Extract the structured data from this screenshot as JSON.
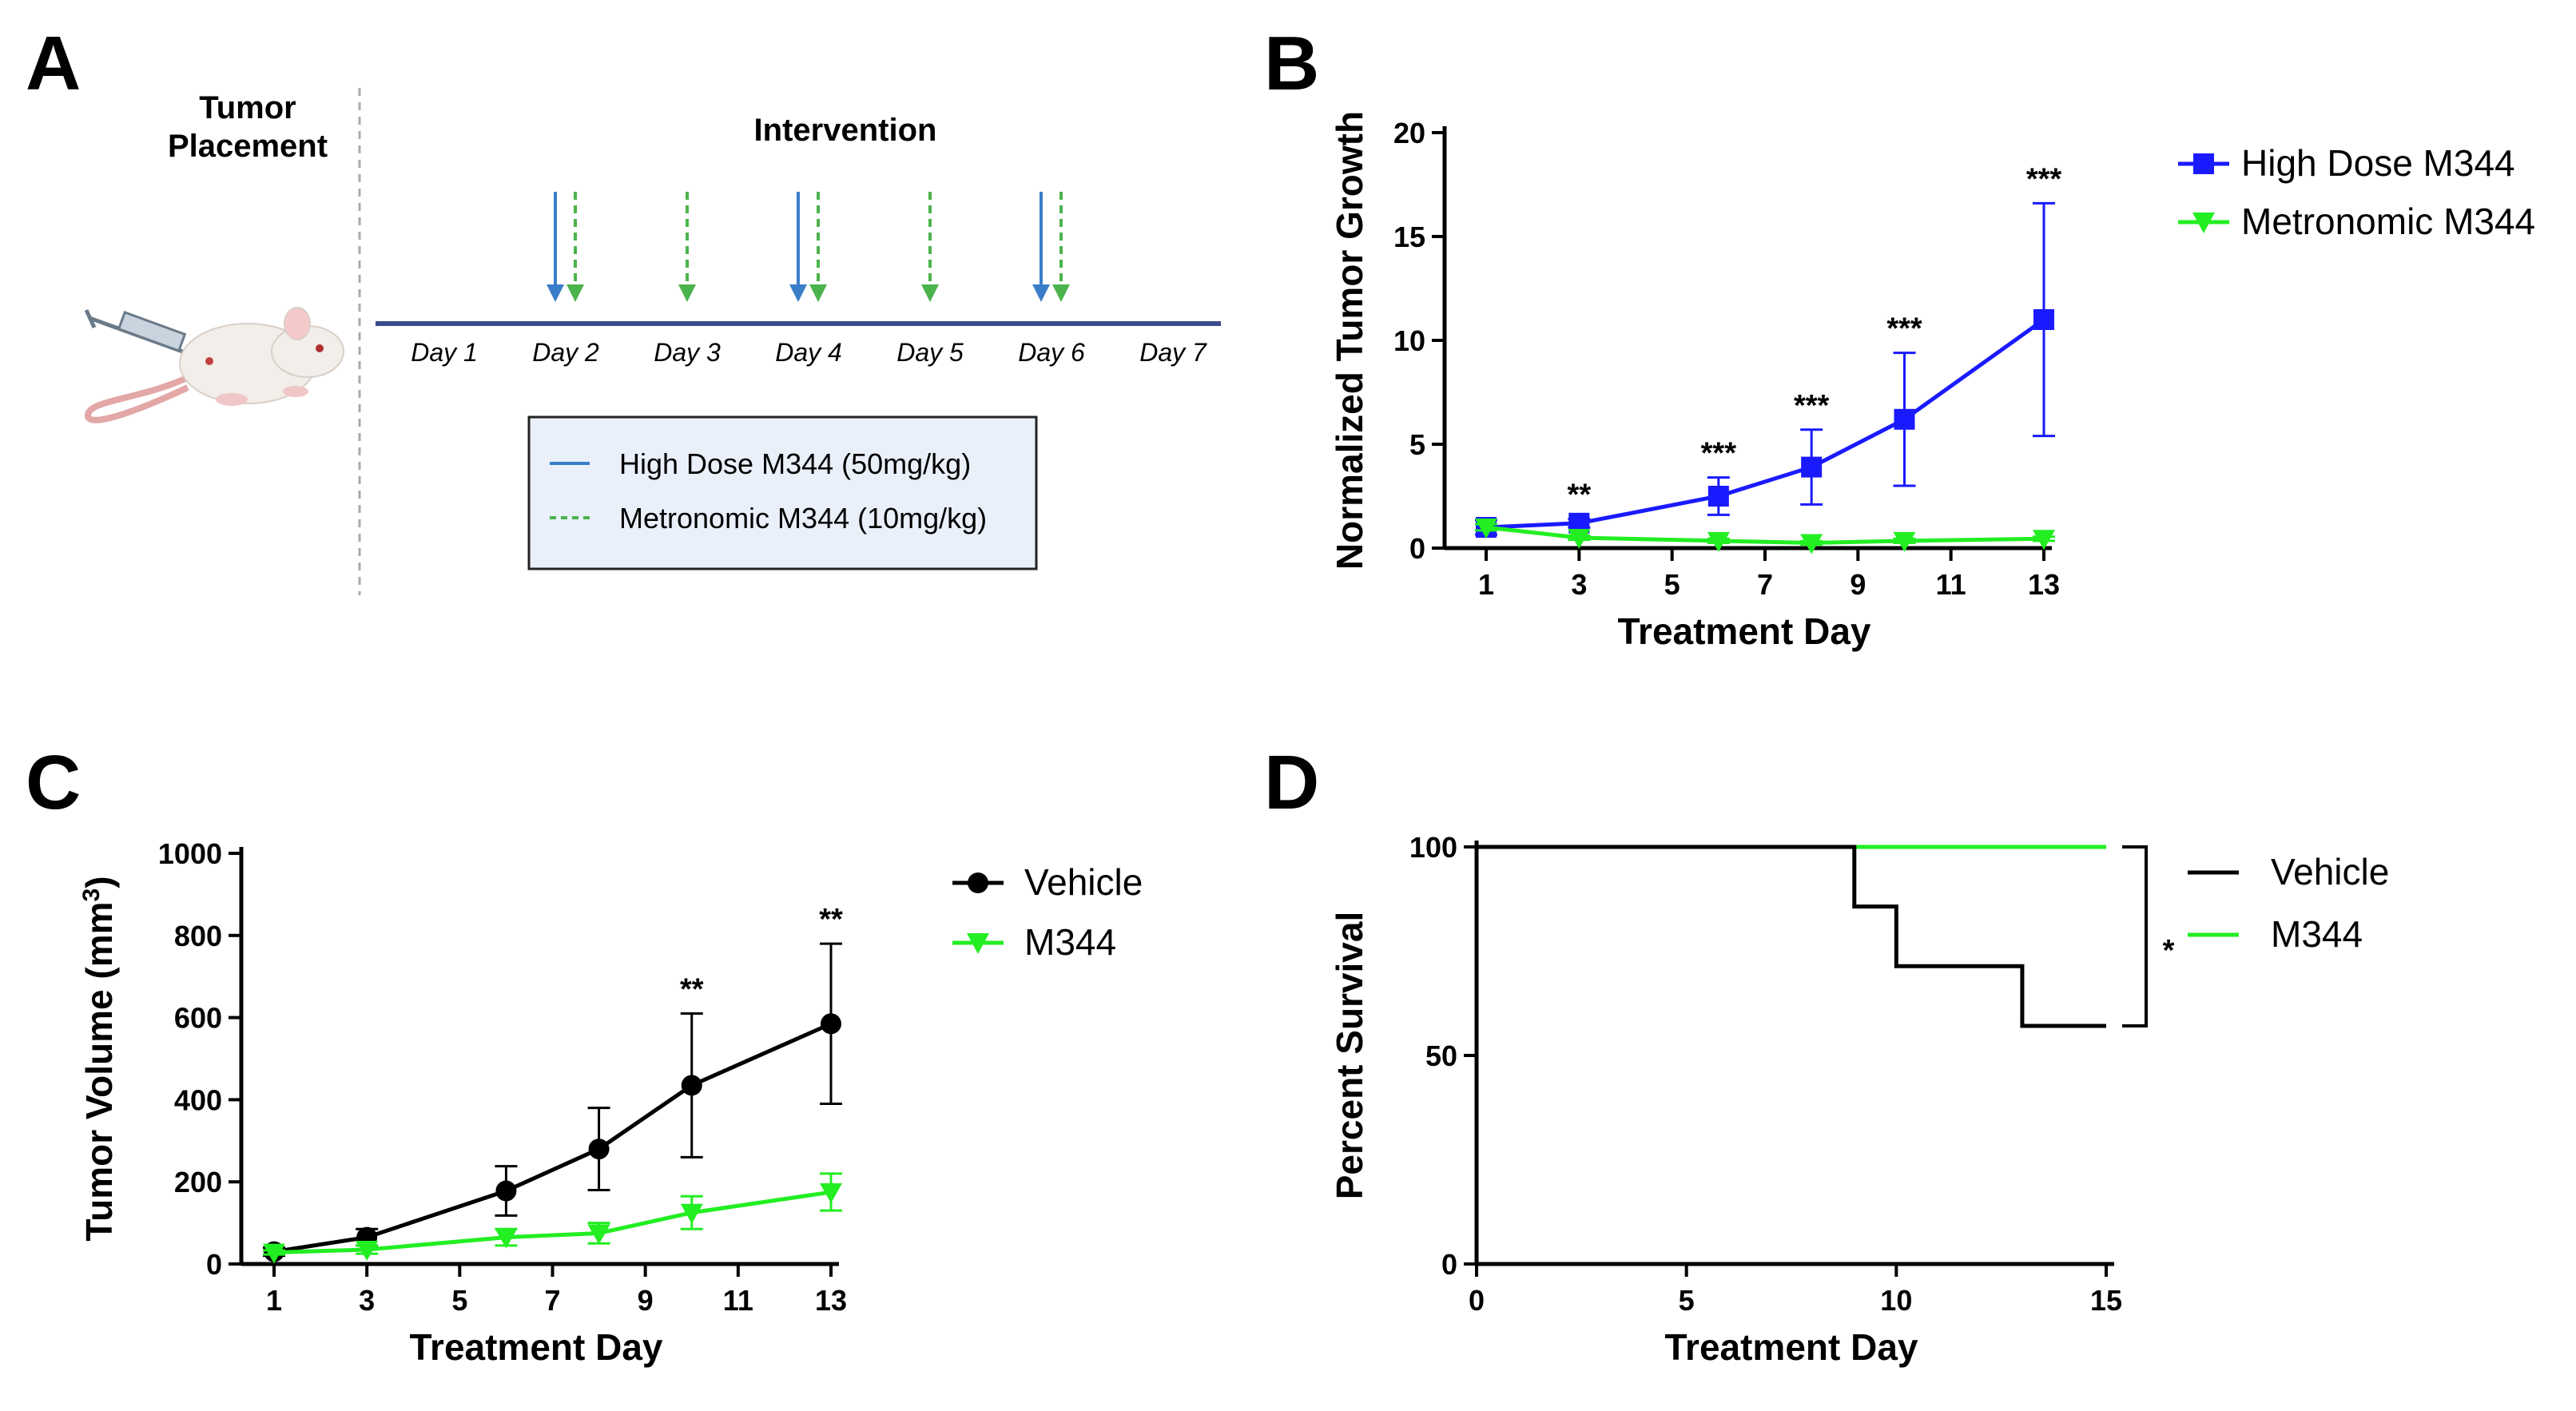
{
  "colors": {
    "high_dose": "#1a1aff",
    "metronomic": "#22ee22",
    "vehicle": "#000000",
    "m344": "#22ee22",
    "arrow_blue": "#3a7dc9",
    "arrow_green": "#4cb34c",
    "timeline": "#3b4a8c",
    "legend_bg": "#e9f0fa"
  },
  "panel_a": {
    "letter": "A",
    "placement_line1": "Tumor",
    "placement_line2": "Placement",
    "intervention": "Intervention",
    "days": [
      "Day 1",
      "Day 2",
      "Day 3",
      "Day 4",
      "Day 5",
      "Day 6",
      "Day 7"
    ],
    "high_dose_days": [
      2,
      4,
      6
    ],
    "metronomic_days": [
      2,
      3,
      4,
      5,
      6
    ],
    "legend": {
      "high": "High Dose M344 (50mg/kg)",
      "metro": "Metronomic M344 (10mg/kg)"
    },
    "icons": [
      "mouse-icon",
      "syringe-icon"
    ]
  },
  "chart_data": [
    {
      "panel": "B",
      "type": "line",
      "xlabel": "Treatment Day",
      "ylabel": "Normalized Tumor Growth",
      "xlim": [
        1,
        13
      ],
      "xticks": [
        1,
        3,
        5,
        7,
        9,
        11,
        13
      ],
      "ylim": [
        0,
        20
      ],
      "yticks": [
        0,
        5,
        10,
        15,
        20
      ],
      "legend_position": "top-right",
      "series": [
        {
          "name": "High Dose M344",
          "marker": "square",
          "x": [
            1,
            3,
            6,
            8,
            10,
            13
          ],
          "values": [
            1.0,
            1.2,
            2.5,
            3.9,
            6.2,
            11.0
          ],
          "err": [
            0.35,
            0.2,
            0.9,
            1.8,
            3.2,
            5.6
          ]
        },
        {
          "name": "Metronomic M344",
          "marker": "triangle-down",
          "x": [
            1,
            3,
            6,
            8,
            10,
            13
          ],
          "values": [
            1.0,
            0.5,
            0.35,
            0.25,
            0.35,
            0.45
          ],
          "err": [
            0.15,
            0.1,
            0.1,
            0.08,
            0.1,
            0.1
          ]
        }
      ],
      "annotations": [
        {
          "x": 3,
          "text": "**"
        },
        {
          "x": 6,
          "text": "***"
        },
        {
          "x": 8,
          "text": "***"
        },
        {
          "x": 10,
          "text": "***"
        },
        {
          "x": 13,
          "text": "***"
        }
      ]
    },
    {
      "panel": "C",
      "type": "line",
      "xlabel": "Treatment  Day",
      "ylabel": "Tumor Volume  (mm",
      "ylabel_sup": "3",
      "ylabel_end": ")",
      "xlim": [
        1,
        13
      ],
      "xticks": [
        1,
        3,
        5,
        7,
        9,
        11,
        13
      ],
      "ylim": [
        0,
        1000
      ],
      "yticks": [
        0,
        200,
        400,
        600,
        800,
        1000
      ],
      "legend_position": "top-right",
      "series": [
        {
          "name": "Vehicle",
          "marker": "circle",
          "x": [
            1,
            3,
            6,
            8,
            10,
            13
          ],
          "values": [
            30,
            65,
            178,
            280,
            435,
            585
          ],
          "err": [
            10,
            20,
            60,
            100,
            175,
            195
          ]
        },
        {
          "name": "M344",
          "marker": "triangle-down",
          "x": [
            1,
            3,
            6,
            8,
            10,
            13
          ],
          "values": [
            28,
            35,
            65,
            75,
            125,
            175
          ],
          "err": [
            5,
            10,
            20,
            25,
            40,
            45
          ]
        }
      ],
      "annotations": [
        {
          "x": 10,
          "text": "**"
        },
        {
          "x": 13,
          "text": "**"
        }
      ]
    },
    {
      "panel": "D",
      "type": "line",
      "subtype": "step-survival",
      "xlabel": "Treatment Day",
      "ylabel": "Percent Survival",
      "xlim": [
        0,
        15
      ],
      "xticks": [
        0,
        5,
        10,
        15
      ],
      "ylim": [
        0,
        100
      ],
      "yticks": [
        0,
        50,
        100
      ],
      "legend_position": "top-right",
      "series": [
        {
          "name": "Vehicle",
          "x": [
            0,
            9,
            10,
            13,
            15
          ],
          "values": [
            100,
            85.7,
            71.4,
            57.1,
            57.1
          ]
        },
        {
          "name": "M344",
          "x": [
            0,
            15
          ],
          "values": [
            100,
            100
          ]
        }
      ],
      "significance": "*"
    }
  ]
}
